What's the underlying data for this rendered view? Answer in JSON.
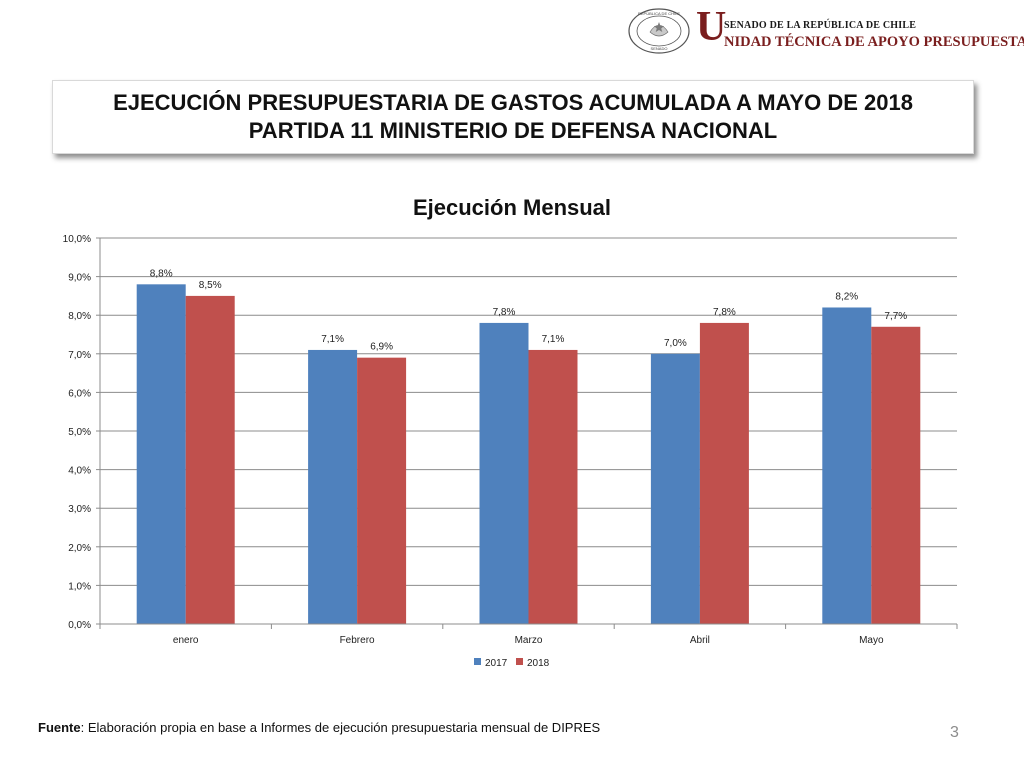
{
  "header": {
    "seal_text_top": "REPÚBLICA DE CHILE",
    "seal_text_bottom": "SENADO",
    "big_letter": "U",
    "senado_line": "SENADO DE LA REPÚBLICA DE CHILE",
    "unit_line": "NIDAD TÉCNICA DE APOYO PRESUPUESTARIO"
  },
  "title": {
    "line1": "EJECUCIÓN PRESUPUESTARIA DE GASTOS ACUMULADA A MAYO DE 2018",
    "line2": "PARTIDA 11 MINISTERIO DE DEFENSA NACIONAL"
  },
  "chart_data": {
    "type": "bar",
    "title": "Ejecución Mensual",
    "categories": [
      "enero",
      "Febrero",
      "Marzo",
      "Abril",
      "Mayo"
    ],
    "series": [
      {
        "name": "2017",
        "color": "#4f81bd",
        "values": [
          8.8,
          7.1,
          7.8,
          7.0,
          8.2
        ],
        "labels": [
          "8,8%",
          "7,1%",
          "7,8%",
          "7,0%",
          "8,2%"
        ]
      },
      {
        "name": "2018",
        "color": "#c0504d",
        "values": [
          8.5,
          6.9,
          7.1,
          7.8,
          7.7
        ],
        "labels": [
          "8,5%",
          "6,9%",
          "7,1%",
          "7,8%",
          "7,7%"
        ]
      }
    ],
    "ylim": [
      0,
      10
    ],
    "yticks": [
      "0,0%",
      "1,0%",
      "2,0%",
      "3,0%",
      "4,0%",
      "5,0%",
      "6,0%",
      "7,0%",
      "8,0%",
      "9,0%",
      "10,0%"
    ],
    "grid": true,
    "legend": "bottom"
  },
  "footer": {
    "source_label": "Fuente",
    "source_text": ": Elaboración propia en base  a Informes de ejecución presupuestaria mensual de DIPRES"
  },
  "page_number": "3"
}
